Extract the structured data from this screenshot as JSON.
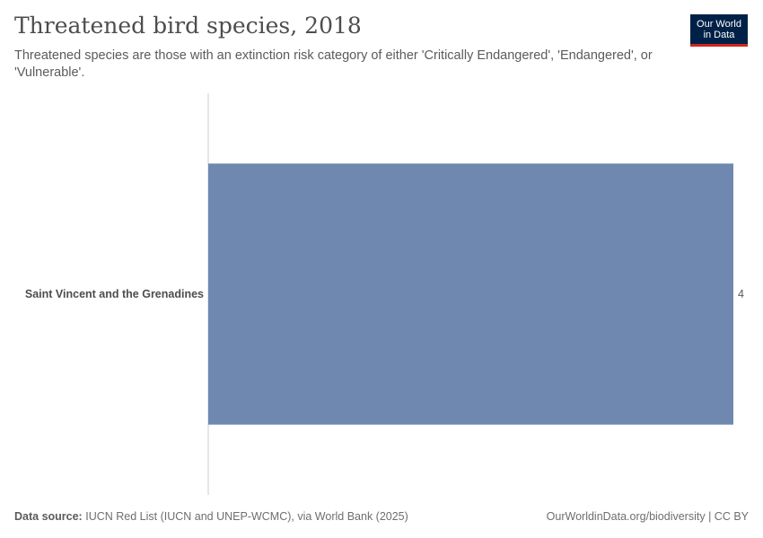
{
  "header": {
    "title": "Threatened bird species, 2018",
    "subtitle": "Threatened species are those with an extinction risk category of either 'Critically Endangered', 'Endangered', or 'Vulnerable'."
  },
  "logo": {
    "line1": "Our World",
    "line2": "in Data"
  },
  "footer": {
    "source_label": "Data source:",
    "source_text": "IUCN Red List (IUCN and UNEP-WCMC), via World Bank (2025)",
    "link_text": "OurWorldinData.org/biodiversity | CC BY"
  },
  "colors": {
    "bar": "#6f88b0",
    "axis": "#cccccc",
    "label": "#4d4d4d"
  },
  "chart_data": {
    "type": "bar",
    "orientation": "horizontal",
    "categories": [
      "Saint Vincent and the Grenadines"
    ],
    "values": [
      4
    ],
    "value_labels": [
      "4"
    ],
    "xlim": [
      0,
      4
    ],
    "grid": false,
    "legend": "none"
  }
}
